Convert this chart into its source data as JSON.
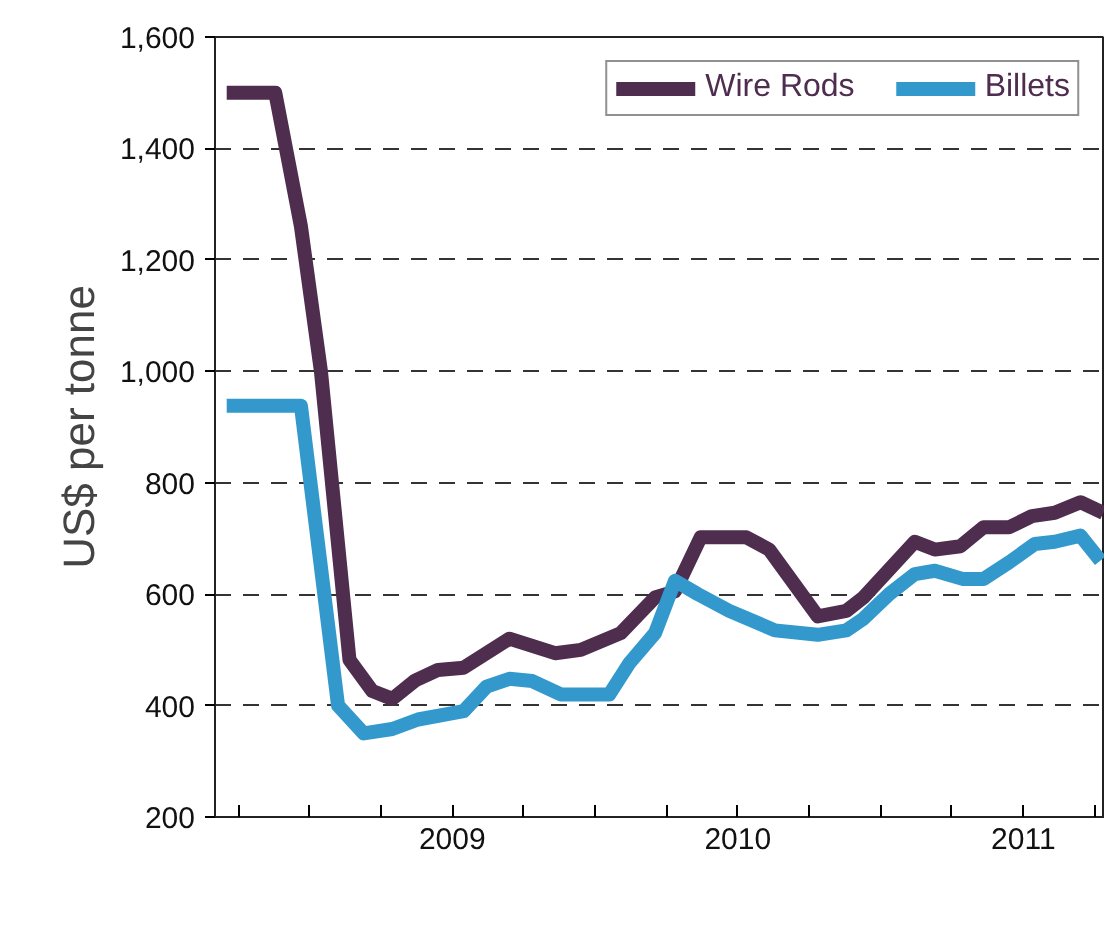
{
  "chart_data": {
    "type": "line",
    "ylabel": "US$ per tonne",
    "xlim": [
      2008.669,
      2011.786
    ],
    "xticks": [
      {
        "value": 2008.75,
        "label": null
      },
      {
        "value": 2009,
        "label": null
      },
      {
        "value": 2009.25,
        "label": null
      },
      {
        "value": 2009.5,
        "label": "2009"
      },
      {
        "value": 2009.75,
        "label": null
      },
      {
        "value": 2010,
        "label": null
      },
      {
        "value": 2010.25,
        "label": null
      },
      {
        "value": 2010.5,
        "label": "2010"
      },
      {
        "value": 2010.75,
        "label": null
      },
      {
        "value": 2011,
        "label": null
      },
      {
        "value": 2011.25,
        "label": null
      },
      {
        "value": 2011.5,
        "label": "2011"
      },
      {
        "value": 2011.75,
        "label": null
      }
    ],
    "ylim": [
      200,
      1600
    ],
    "yticks": [
      {
        "value": 200,
        "label": "200"
      },
      {
        "value": 400,
        "label": "400"
      },
      {
        "value": 600,
        "label": "600"
      },
      {
        "value": 800,
        "label": "800"
      },
      {
        "value": 1000,
        "label": "1,000"
      },
      {
        "value": 1200,
        "label": "1,200"
      },
      {
        "value": 1400,
        "label": "1,400"
      },
      {
        "value": 1600,
        "label": "1,600"
      }
    ],
    "grid": "y",
    "legend": "top right",
    "line_style": "solid",
    "marker": "none",
    "series": [
      {
        "name": "Wire Rods",
        "color": "#4f2d4f",
        "x": [
          2008.71,
          2008.88,
          2008.97,
          2009.04,
          2009.14,
          2009.22,
          2009.29,
          2009.37,
          2009.45,
          2009.54,
          2009.7,
          2009.86,
          2009.95,
          2010.09,
          2010.21,
          2010.28,
          2010.37,
          2010.53,
          2010.61,
          2010.78,
          2010.88,
          2010.94,
          2011.12,
          2011.19,
          2011.28,
          2011.36,
          2011.45,
          2011.53,
          2011.61,
          2011.7,
          2011.78
        ],
        "values": [
          1500,
          1500,
          1260,
          1000,
          482,
          426,
          412,
          445,
          464,
          468,
          520,
          494,
          500,
          530,
          594,
          605,
          702,
          702,
          680,
          560,
          570,
          594,
          694,
          680,
          686,
          720,
          720,
          740,
          746,
          765,
          746
        ]
      },
      {
        "name": "Billets",
        "color": "#3399cc",
        "x": [
          2008.71,
          2008.97,
          2009.1,
          2009.19,
          2009.29,
          2009.38,
          2009.54,
          2009.62,
          2009.7,
          2009.78,
          2009.88,
          2010.05,
          2010.12,
          2010.21,
          2010.28,
          2010.36,
          2010.47,
          2010.63,
          2010.78,
          2010.88,
          2010.94,
          2011.03,
          2011.12,
          2011.19,
          2011.29,
          2011.36,
          2011.45,
          2011.54,
          2011.61,
          2011.7,
          2011.77
        ],
        "values": [
          938,
          938,
          400,
          350,
          358,
          375,
          390,
          434,
          448,
          444,
          420,
          420,
          476,
          530,
          624,
          600,
          570,
          535,
          527,
          535,
          556,
          600,
          636,
          642,
          627,
          627,
          657,
          690,
          694,
          705,
          660
        ]
      }
    ]
  }
}
